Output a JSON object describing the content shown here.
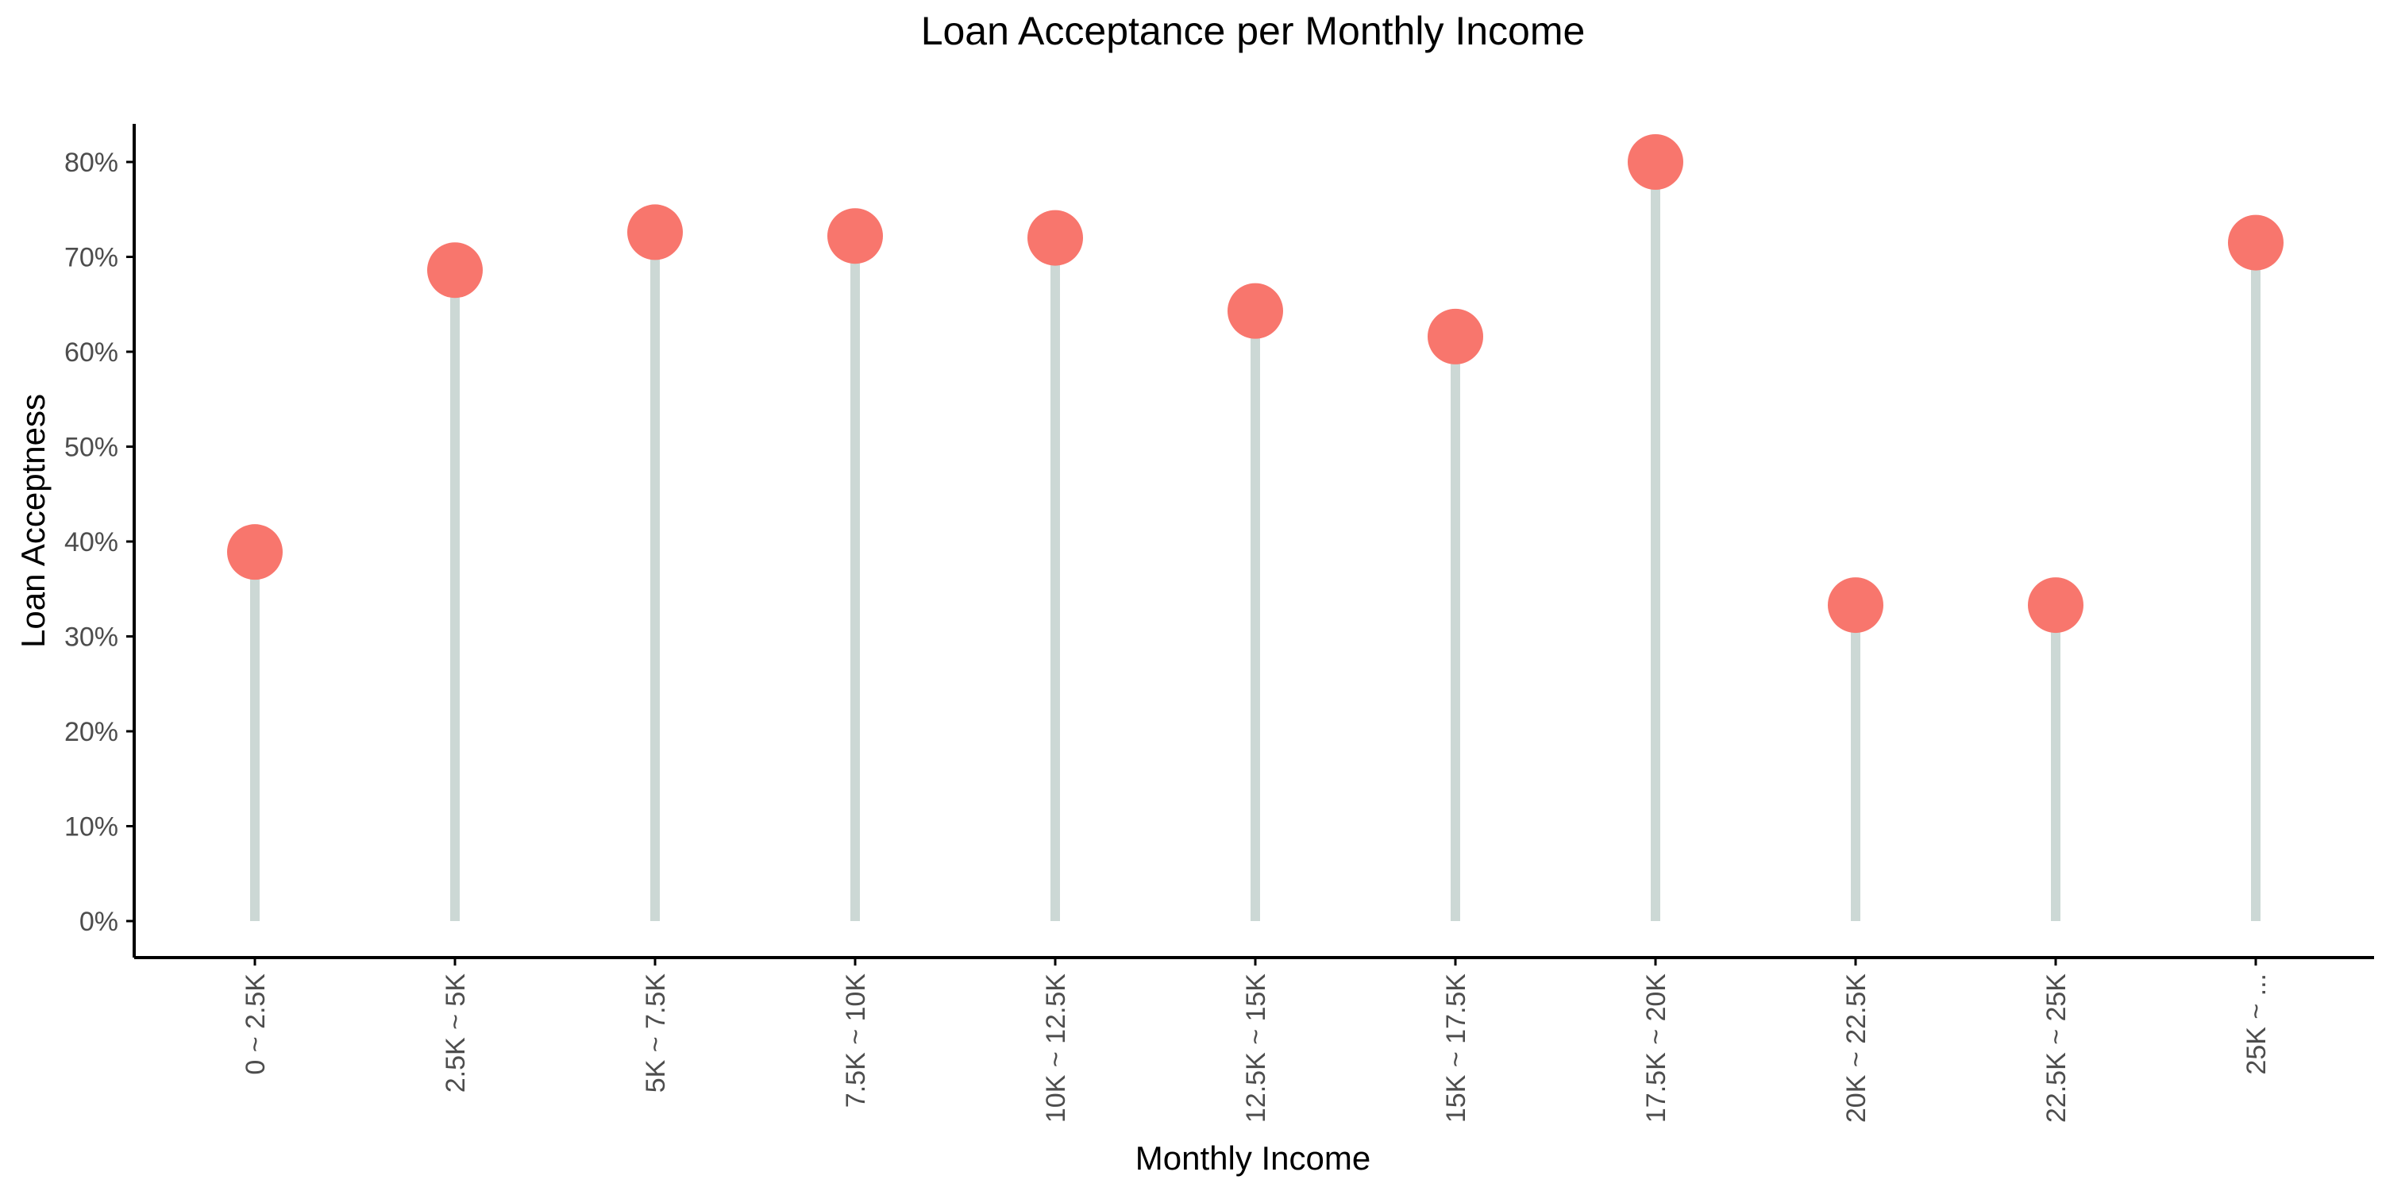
{
  "chart_data": {
    "type": "lollipop",
    "title": "Loan Acceptance per Monthly Income",
    "xlabel": "Monthly Income",
    "ylabel": "Loan Acceptness",
    "categories": [
      "0 ~ 2.5K",
      "2.5K ~ 5K",
      "5K ~ 7.5K",
      "7.5K ~ 10K",
      "10K ~ 12.5K",
      "12.5K ~ 15K",
      "15K ~ 17.5K",
      "17.5K ~ 20K",
      "20K ~ 22.5K",
      "22.5K ~ 25K",
      "25K ~ ..."
    ],
    "values": [
      0.389,
      0.686,
      0.726,
      0.722,
      0.72,
      0.643,
      0.616,
      0.8,
      0.333,
      0.333,
      0.715
    ],
    "ylim": [
      -0.04,
      0.8
    ],
    "yticks": [
      0,
      0.1,
      0.2,
      0.3,
      0.4,
      0.5,
      0.6,
      0.7,
      0.8
    ],
    "ytick_labels": [
      "0%",
      "10%",
      "20%",
      "30%",
      "40%",
      "50%",
      "60%",
      "70%",
      "80%"
    ],
    "grid": false,
    "colors": {
      "point": "#F8766D",
      "stem": "#CCD8D5",
      "axis": "#000000",
      "tick_text": "#4D4D4D",
      "title_text": "#000000"
    }
  }
}
